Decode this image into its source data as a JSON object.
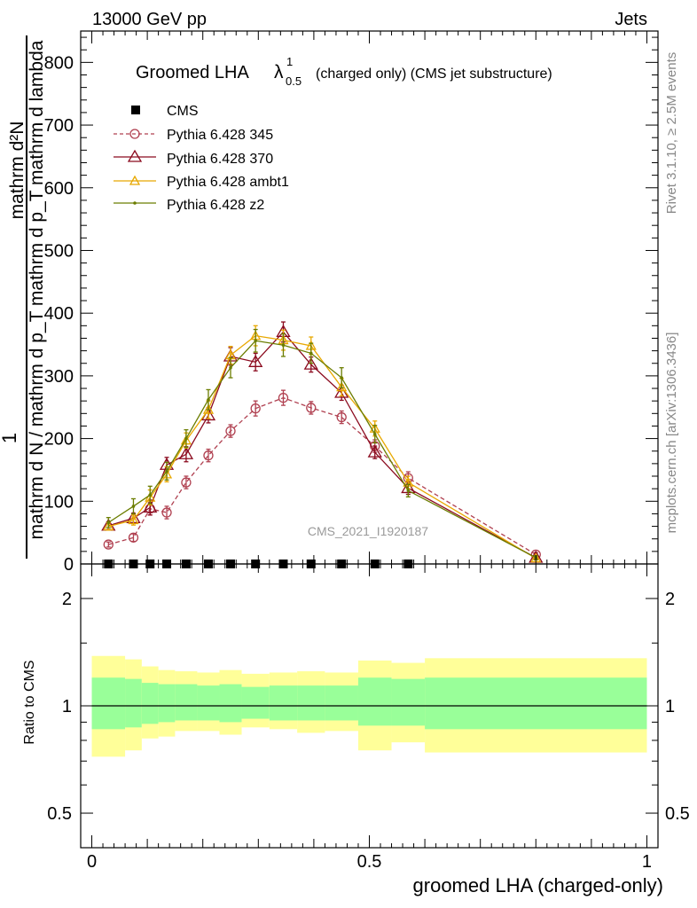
{
  "header": {
    "beam": "13000 GeV pp",
    "category": "Jets"
  },
  "side_text": {
    "rivet": "Rivet 3.1.10, ≥ 2.5M events",
    "mcplots": "mcplots.cern.ch [arXiv:1306.3436]"
  },
  "colors": {
    "ratio_band_outer": "#ffff99",
    "ratio_band_inner": "#99ff99"
  },
  "chart_data": [
    {
      "type": "line",
      "panel": "main",
      "title": "Groomed LHA",
      "title_symbol": "λ",
      "title_sup": "1",
      "title_sub": "0.5",
      "title_suffix": "(charged only) (CMS jet substructure)",
      "watermark": "CMS_2021_I1920187",
      "ylabel_one": "1",
      "ylabel_num": "mathrm d²N",
      "ylabel_den": "mathrm d N / mathrm d p_T mathrm d p_T mathrm d lambda",
      "ylim": [
        0,
        850
      ],
      "yticks": [
        0,
        100,
        200,
        300,
        400,
        500,
        600,
        700,
        800
      ],
      "xlim": [
        -0.02,
        1.02
      ],
      "legend_position": "top-left",
      "series": [
        {
          "name": "CMS",
          "color": "#000000",
          "marker": "square",
          "x": [
            0.03,
            0.075,
            0.105,
            0.135,
            0.17,
            0.21,
            0.25,
            0.295,
            0.345,
            0.395,
            0.45,
            0.51,
            0.57
          ],
          "y": [
            0,
            0,
            0,
            0,
            0,
            0,
            0,
            0,
            0,
            0,
            0,
            0,
            0
          ]
        },
        {
          "name": "Pythia 6.428 345",
          "color": "#b04050",
          "marker": "circle-open",
          "dashed": true,
          "x": [
            0.03,
            0.075,
            0.105,
            0.135,
            0.17,
            0.21,
            0.25,
            0.295,
            0.345,
            0.395,
            0.45,
            0.51,
            0.57,
            0.8
          ],
          "y": [
            31,
            42,
            88,
            82,
            130,
            173,
            212,
            248,
            265,
            249,
            234,
            188,
            137,
            15
          ],
          "err": [
            4,
            6,
            10,
            10,
            10,
            10,
            10,
            12,
            12,
            10,
            10,
            10,
            10,
            3
          ]
        },
        {
          "name": "Pythia 6.428 370",
          "color": "#8b0a1e",
          "marker": "triangle-open",
          "dashed": false,
          "x": [
            0.03,
            0.075,
            0.105,
            0.135,
            0.17,
            0.21,
            0.25,
            0.295,
            0.345,
            0.395,
            0.45,
            0.51,
            0.57,
            0.8
          ],
          "y": [
            61,
            73,
            90,
            158,
            175,
            237,
            331,
            322,
            370,
            318,
            273,
            178,
            121,
            10
          ],
          "err": [
            6,
            8,
            12,
            12,
            12,
            12,
            14,
            14,
            16,
            12,
            12,
            10,
            10,
            3
          ]
        },
        {
          "name": "Pythia 6.428 ambt1",
          "color": "#e8a800",
          "marker": "triangle-open-small",
          "dashed": false,
          "x": [
            0.03,
            0.075,
            0.105,
            0.135,
            0.17,
            0.21,
            0.25,
            0.295,
            0.345,
            0.395,
            0.45,
            0.51,
            0.57,
            0.8
          ],
          "y": [
            60,
            70,
            106,
            143,
            197,
            246,
            333,
            364,
            357,
            348,
            282,
            216,
            130,
            9
          ],
          "err": [
            6,
            8,
            12,
            12,
            12,
            14,
            14,
            16,
            16,
            14,
            14,
            12,
            10,
            3
          ]
        },
        {
          "name": "Pythia 6.428 z2",
          "color": "#6b7d00",
          "marker": "dot",
          "dashed": false,
          "x": [
            0.03,
            0.075,
            0.105,
            0.135,
            0.17,
            0.21,
            0.25,
            0.295,
            0.345,
            0.395,
            0.45,
            0.51,
            0.57,
            0.8
          ],
          "y": [
            66,
            92,
            110,
            148,
            200,
            262,
            313,
            356,
            349,
            336,
            297,
            207,
            117,
            10
          ],
          "err": [
            8,
            12,
            14,
            14,
            14,
            16,
            16,
            18,
            18,
            16,
            16,
            14,
            10,
            3
          ]
        }
      ]
    },
    {
      "type": "area",
      "panel": "ratio",
      "ylabel": "Ratio to CMS",
      "xlabel": "groomed LHA (charged-only)",
      "log_y": true,
      "ylim": [
        0.4,
        2.5
      ],
      "yticks": [
        0.5,
        1,
        2
      ],
      "ytick_labels": [
        "0.5",
        "1",
        "2"
      ],
      "xticks": [
        0,
        0.5,
        1
      ],
      "xtick_labels": [
        "0",
        "0.5",
        "1"
      ],
      "reference_line": 1,
      "band_edges": [
        0.0,
        0.06,
        0.09,
        0.12,
        0.15,
        0.19,
        0.23,
        0.27,
        0.32,
        0.37,
        0.42,
        0.48,
        0.54,
        0.6,
        1.0
      ],
      "outer_band": {
        "upper": [
          1.38,
          1.35,
          1.29,
          1.26,
          1.25,
          1.24,
          1.26,
          1.23,
          1.24,
          1.25,
          1.24,
          1.34,
          1.32,
          1.36
        ],
        "lower": [
          0.72,
          0.75,
          0.81,
          0.82,
          0.85,
          0.85,
          0.83,
          0.87,
          0.86,
          0.84,
          0.85,
          0.75,
          0.79,
          0.74
        ]
      },
      "inner_band": {
        "upper": [
          1.2,
          1.19,
          1.16,
          1.15,
          1.15,
          1.14,
          1.15,
          1.13,
          1.14,
          1.14,
          1.14,
          1.2,
          1.19,
          1.2
        ],
        "lower": [
          0.86,
          0.87,
          0.89,
          0.9,
          0.91,
          0.91,
          0.9,
          0.92,
          0.91,
          0.91,
          0.91,
          0.88,
          0.88,
          0.86
        ]
      }
    }
  ]
}
